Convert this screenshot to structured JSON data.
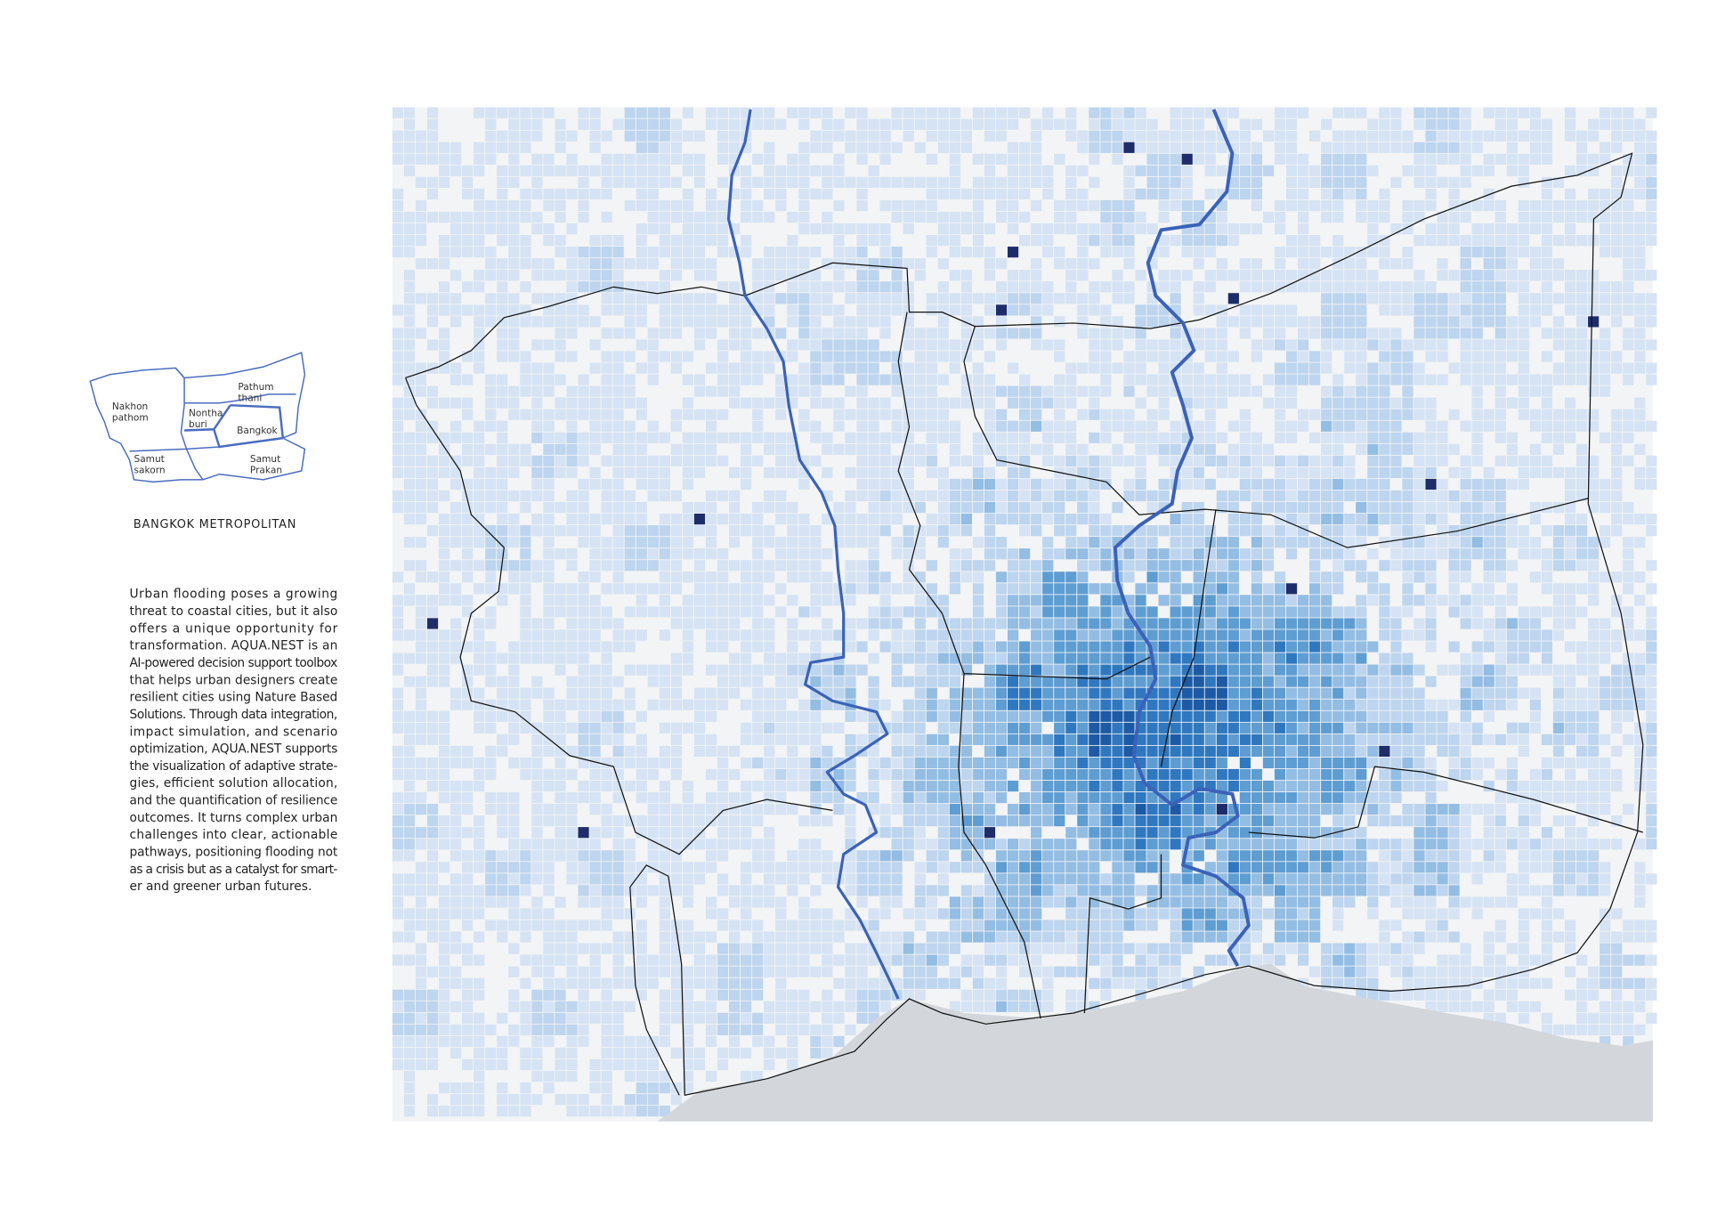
{
  "inset": {
    "labels": [
      "Nakhon\npathom",
      "Nontha\nburi",
      "Pathum\nthani",
      "Bangkok",
      "Samut\nsakorn",
      "Samut\nPrakan"
    ],
    "caption": "BANGKOK METROPOLITAN"
  },
  "description": {
    "lines": [
      "Urban flooding poses a growing",
      "threat to coastal cities, but it also",
      "offers a unique opportunity for",
      "transformation. AQUA.NEST is an",
      "AI-powered decision support toolbox",
      "that helps urban designers create",
      "resilient cities using Nature Based",
      "Solutions. Through data integration,",
      "impact simulation, and scenario",
      "optimization, AQUA.NEST supports",
      "the visualization of adaptive strate-",
      "gies, efficient solution allocation,",
      "and the quantification of resilience",
      "outcomes. It turns complex urban",
      "challenges into clear, actionable",
      "pathways, positioning flooding not",
      "as a crisis but as a catalyst for smart-",
      "er and greener urban futures."
    ]
  }
}
